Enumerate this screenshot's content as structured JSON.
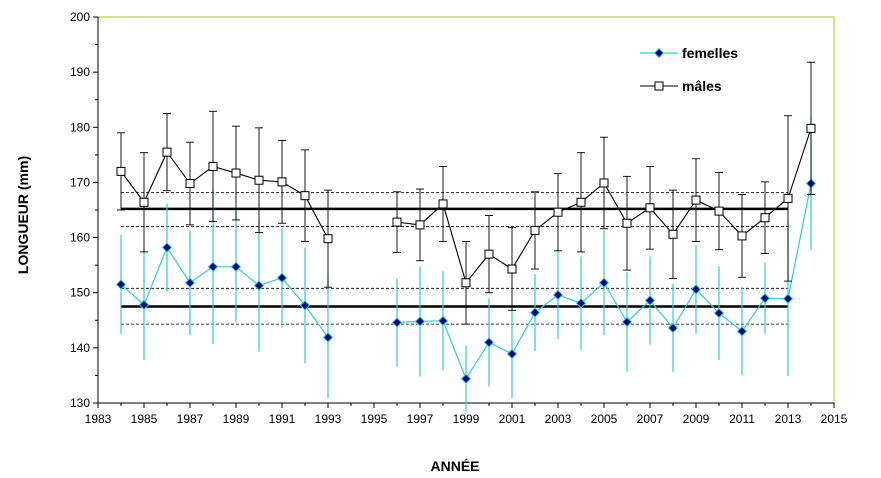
{
  "chart_data": {
    "type": "line",
    "title": "",
    "xlabel": "ANNÉE",
    "ylabel": "LONGUEUR  (mm)",
    "xlim": [
      1983,
      2015
    ],
    "ylim": [
      130,
      200
    ],
    "xticks": [
      1983,
      1985,
      1987,
      1989,
      1991,
      1993,
      1995,
      1997,
      1999,
      2001,
      2003,
      2005,
      2007,
      2009,
      2011,
      2013,
      2015
    ],
    "yticks": [
      130,
      140,
      150,
      160,
      170,
      180,
      190,
      200
    ],
    "grid": false,
    "legend": "top-right",
    "colors": {
      "femelles": "#33cccc",
      "femelles_marker": "#000080",
      "males": "#000000",
      "frame": "#99cc00"
    },
    "series": [
      {
        "name": "femelles",
        "points": [
          {
            "x": 1984,
            "y": 151.5,
            "err": 9
          },
          {
            "x": 1985,
            "y": 147.8,
            "err": 10
          },
          {
            "x": 1986,
            "y": 158.2,
            "err": 8
          },
          {
            "x": 1987,
            "y": 151.8,
            "err": 9.5
          },
          {
            "x": 1988,
            "y": 154.7,
            "err": 14
          },
          {
            "x": 1989,
            "y": 154.7,
            "err": 10
          },
          {
            "x": 1990,
            "y": 151.3,
            "err": 12
          },
          {
            "x": 1991,
            "y": 152.7,
            "err": 9
          },
          {
            "x": 1992,
            "y": 147.7,
            "err": 10.5
          },
          {
            "x": 1993,
            "y": 141.9,
            "err": 11
          },
          {
            "x": 1996,
            "y": 144.6,
            "err": 8
          },
          {
            "x": 1997,
            "y": 144.8,
            "err": 10
          },
          {
            "x": 1998,
            "y": 144.9,
            "err": 9
          },
          {
            "x": 1999,
            "y": 134.4,
            "err": 6
          },
          {
            "x": 2000,
            "y": 141.0,
            "err": 8
          },
          {
            "x": 2001,
            "y": 138.9,
            "err": 8
          },
          {
            "x": 2002,
            "y": 146.4,
            "err": 7
          },
          {
            "x": 2003,
            "y": 149.6,
            "err": 8
          },
          {
            "x": 2004,
            "y": 148.1,
            "err": 8.5
          },
          {
            "x": 2005,
            "y": 151.8,
            "err": 9.5
          },
          {
            "x": 2006,
            "y": 144.7,
            "err": 9
          },
          {
            "x": 2007,
            "y": 148.6,
            "err": 8
          },
          {
            "x": 2008,
            "y": 143.6,
            "err": 8
          },
          {
            "x": 2009,
            "y": 150.6,
            "err": 8
          },
          {
            "x": 2010,
            "y": 146.3,
            "err": 8.5
          },
          {
            "x": 2011,
            "y": 143.0,
            "err": 8
          },
          {
            "x": 2012,
            "y": 149.0,
            "err": 6.5
          },
          {
            "x": 2013,
            "y": 148.9,
            "err": 14
          },
          {
            "x": 2014,
            "y": 169.8,
            "err": 12
          }
        ],
        "mean": 147.5,
        "band": [
          144.3,
          150.8
        ]
      },
      {
        "name": "mâles",
        "points": [
          {
            "x": 1984,
            "y": 172.0,
            "err": 7
          },
          {
            "x": 1985,
            "y": 166.4,
            "err": 9
          },
          {
            "x": 1986,
            "y": 175.5,
            "err": 7
          },
          {
            "x": 1987,
            "y": 169.8,
            "err": 7.5
          },
          {
            "x": 1988,
            "y": 172.9,
            "err": 10
          },
          {
            "x": 1989,
            "y": 171.7,
            "err": 8.5
          },
          {
            "x": 1990,
            "y": 170.4,
            "err": 9.5
          },
          {
            "x": 1991,
            "y": 170.1,
            "err": 7.5
          },
          {
            "x": 1992,
            "y": 167.6,
            "err": 8.3
          },
          {
            "x": 1993,
            "y": 159.8,
            "err": 8.8
          },
          {
            "x": 1996,
            "y": 162.8,
            "err": 5.5
          },
          {
            "x": 1997,
            "y": 162.3,
            "err": 6.5
          },
          {
            "x": 1998,
            "y": 166.1,
            "err": 6.8
          },
          {
            "x": 1999,
            "y": 151.8,
            "err": 7.5
          },
          {
            "x": 2000,
            "y": 157.0,
            "err": 7
          },
          {
            "x": 2001,
            "y": 154.3,
            "err": 7.5
          },
          {
            "x": 2002,
            "y": 161.3,
            "err": 7
          },
          {
            "x": 2003,
            "y": 164.6,
            "err": 7
          },
          {
            "x": 2004,
            "y": 166.4,
            "err": 9
          },
          {
            "x": 2005,
            "y": 169.9,
            "err": 8.3
          },
          {
            "x": 2006,
            "y": 162.6,
            "err": 8.5
          },
          {
            "x": 2007,
            "y": 165.4,
            "err": 7.5
          },
          {
            "x": 2008,
            "y": 160.6,
            "err": 8
          },
          {
            "x": 2009,
            "y": 166.8,
            "err": 7.5
          },
          {
            "x": 2010,
            "y": 164.8,
            "err": 7
          },
          {
            "x": 2011,
            "y": 160.3,
            "err": 7.5
          },
          {
            "x": 2012,
            "y": 163.6,
            "err": 6.5
          },
          {
            "x": 2013,
            "y": 167.1,
            "err": 15
          },
          {
            "x": 2014,
            "y": 179.8,
            "err": 12
          }
        ],
        "mean": 165.2,
        "band": [
          162.0,
          168.2
        ]
      }
    ],
    "mean_line_range": [
      1984,
      2013
    ]
  }
}
